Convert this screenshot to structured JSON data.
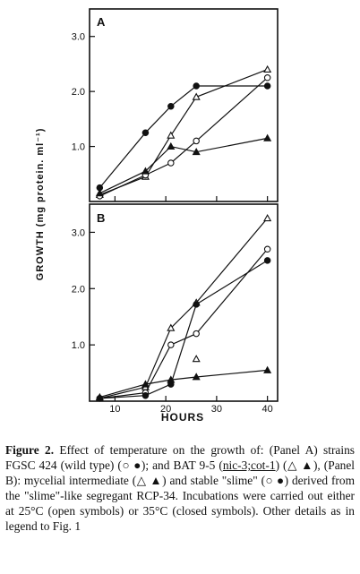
{
  "figure": {
    "ylabel": "GROWTH  (mg protein. ml⁻¹)",
    "xlabel": "HOURS",
    "x_ticks": [
      "10",
      "20",
      "30",
      "40"
    ]
  },
  "chart_data": [
    {
      "panel": "A",
      "type": "line",
      "x_ticks": [
        10,
        20,
        30,
        40
      ],
      "y_ticks": [
        "1.0",
        "2.0",
        "3.0"
      ],
      "ylim": [
        0,
        3.5
      ],
      "xlim": [
        5,
        42
      ],
      "series": [
        {
          "marker": "filled-circle",
          "x": [
            7,
            16,
            21,
            26,
            40
          ],
          "y": [
            0.25,
            1.25,
            1.73,
            2.1,
            2.1
          ]
        },
        {
          "marker": "open-triangle",
          "x": [
            7,
            16,
            21,
            26,
            40
          ],
          "y": [
            0.12,
            0.45,
            1.2,
            1.9,
            2.4
          ]
        },
        {
          "marker": "open-circle",
          "x": [
            7,
            16,
            21,
            26,
            40
          ],
          "y": [
            0.1,
            0.48,
            0.7,
            1.1,
            2.25
          ]
        },
        {
          "marker": "filled-triangle",
          "x": [
            7,
            16,
            21,
            26,
            40
          ],
          "y": [
            0.15,
            0.55,
            1.0,
            0.9,
            1.15
          ]
        }
      ]
    },
    {
      "panel": "B",
      "type": "line",
      "x_ticks": [
        10,
        20,
        30,
        40
      ],
      "y_ticks": [
        "1.0",
        "2.0",
        "3.0"
      ],
      "ylim": [
        0,
        3.5
      ],
      "xlim": [
        5,
        42
      ],
      "series": [
        {
          "marker": "open-triangle",
          "x": [
            7,
            16,
            21,
            26,
            40
          ],
          "y": [
            0.05,
            0.25,
            1.3,
            1.75,
            3.25
          ]
        },
        {
          "marker": "open-circle",
          "x": [
            7,
            16,
            21,
            26,
            40
          ],
          "y": [
            0.05,
            0.15,
            1.0,
            1.2,
            2.7
          ]
        },
        {
          "marker": "filled-circle",
          "x": [
            7,
            16,
            21,
            26,
            40
          ],
          "y": [
            0.05,
            0.1,
            0.3,
            1.72,
            2.5
          ]
        },
        {
          "marker": "filled-triangle",
          "x": [
            7,
            16,
            21,
            26,
            40
          ],
          "y": [
            0.07,
            0.3,
            0.38,
            0.43,
            0.55
          ]
        },
        {
          "marker": "open-triangle",
          "x": [
            26
          ],
          "y": [
            0.75
          ]
        }
      ]
    }
  ],
  "caption": {
    "label": "Figure 2.",
    "t1": " Effect of temperature on the growth of: (Panel A) strains FGSC 424 (wild type) (○ ●); and BAT 9-5 (",
    "u1": "nic-3;cot-1",
    "t2": ") (△ ▲), (Panel B): mycelial intermediate (△ ▲) and stable \"slime\" (○ ●) derived from the \"slime\"-like segregant RCP-34.  Incubations were carried out either at 25°C (open symbols) or 35°C (closed symbols). Other details as in legend to Fig. 1"
  }
}
